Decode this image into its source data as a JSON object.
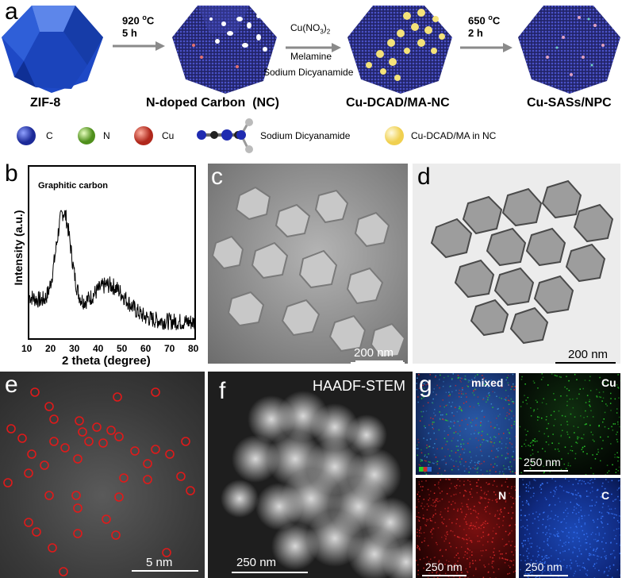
{
  "panel_a": {
    "letter": "a",
    "stages": [
      "ZIF-8",
      "N-doped Carbon  (NC)",
      "Cu-DCAD/MA-NC",
      "Cu-SASs/NPC"
    ],
    "step1": {
      "line1": "920 ",
      "sup": "o",
      "line1_end": "C",
      "line2": "5 h"
    },
    "step2": {
      "line1": "Cu(NO",
      "sub": "3",
      "line1_end": ")",
      "sub2": "2",
      "line2": "Melamine",
      "line3": "Sodium Dicyanamide"
    },
    "step3": {
      "line1": "650 ",
      "sup": "o",
      "line1_end": "C",
      "line2": "2 h"
    },
    "legend": [
      {
        "label": "C",
        "color": "#2e3fa8"
      },
      {
        "label": "N",
        "color": "#7bbf3a"
      },
      {
        "label": "Cu",
        "color": "#d8453a"
      },
      {
        "label": "Sodium Dicyanamide",
        "color": "#1f2bb0"
      },
      {
        "label": "Cu-DCAD/MA in NC",
        "color": "#f4e27a"
      }
    ]
  },
  "panel_b": {
    "letter": "b",
    "annotation": "Graphitic carbon",
    "ylabel": "Intensity (a.u.)",
    "xlabel": "2 theta (degree)",
    "xticks": [
      "10",
      "20",
      "30",
      "40",
      "50",
      "60",
      "70",
      "80"
    ]
  },
  "panel_c": {
    "letter": "c",
    "scale": "200 nm"
  },
  "panel_d": {
    "letter": "d",
    "scale": "200 nm"
  },
  "panel_e": {
    "letter": "e",
    "scale": "5 nm"
  },
  "panel_f": {
    "letter": "f",
    "title": "HAADF-STEM",
    "scale": "250 nm"
  },
  "panel_g": {
    "letter": "g",
    "maps": [
      {
        "label": "mixed"
      },
      {
        "label": "Cu",
        "scale": "250 nm"
      },
      {
        "label": "N",
        "scale": "250 nm"
      },
      {
        "label": "C",
        "scale": "250 nm"
      }
    ]
  }
}
